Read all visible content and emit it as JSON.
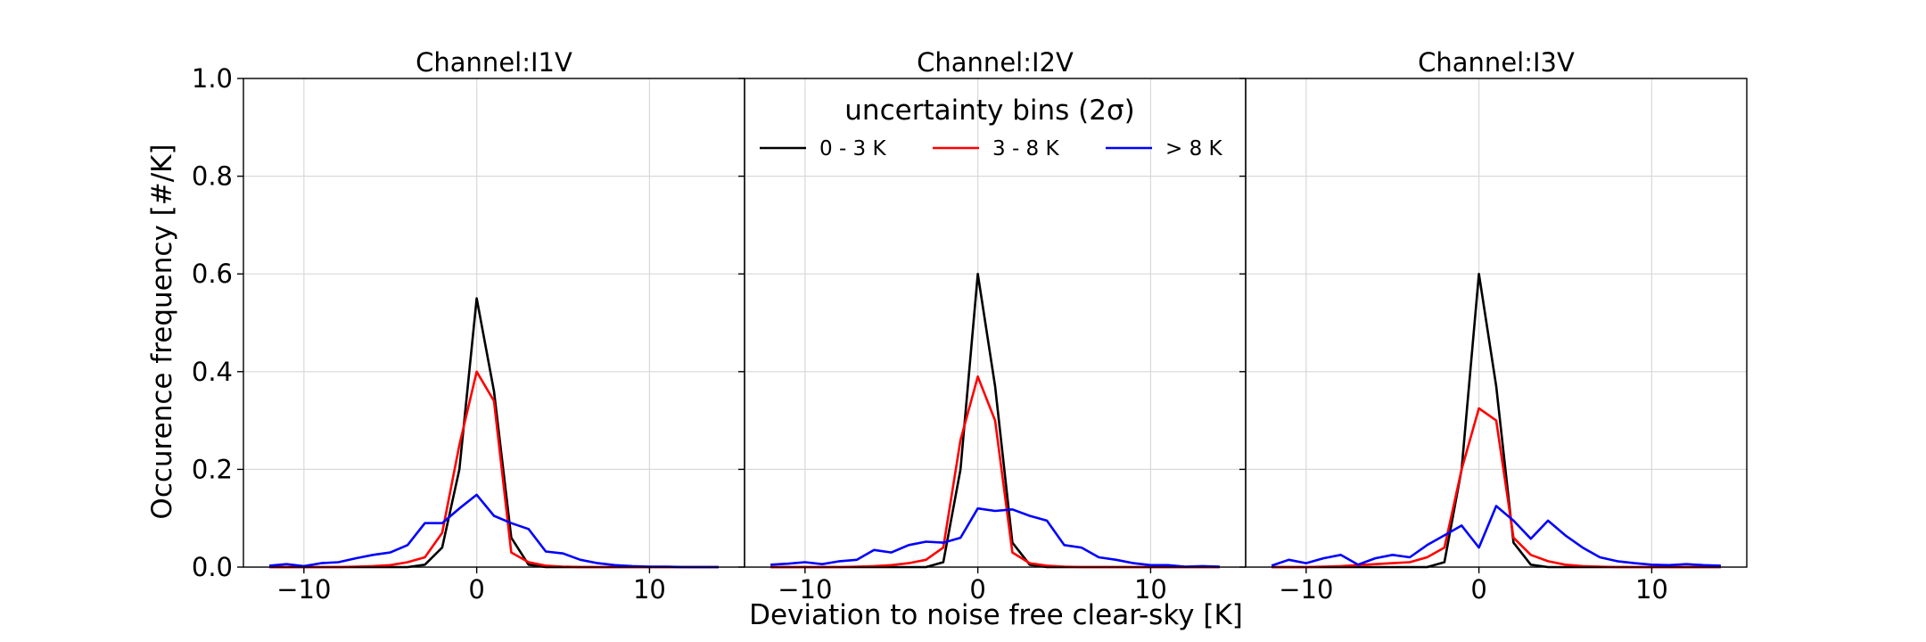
{
  "figure": {
    "ylabel": "Occurence frequency [#/K]",
    "xlabel": "Deviation to noise free clear-sky [K]",
    "legend": {
      "title": "uncertainty bins (2σ)",
      "placement": "upper-center of middle panel",
      "entries": [
        {
          "label": "0 - 3 K",
          "color": "#000000"
        },
        {
          "label": "3 - 8 K",
          "color": "#ff0000"
        },
        {
          "label": "> 8 K",
          "color": "#0000ff"
        }
      ]
    }
  },
  "chart_data": [
    {
      "type": "line",
      "title": "Channel:I1V",
      "xlim": [
        -13.5,
        15.5
      ],
      "ylim": [
        0,
        1.0
      ],
      "xticks": [
        -10,
        0,
        10
      ],
      "xtick_labels": [
        "−10",
        "0",
        "10"
      ],
      "yticks": [
        0.0,
        0.2,
        0.4,
        0.6,
        0.8,
        1.0
      ],
      "ytick_labels": [
        "0.0",
        "0.2",
        "0.4",
        "0.6",
        "0.8",
        "1.0"
      ],
      "grid": true,
      "series": [
        {
          "name": "0 - 3 K",
          "color": "#000000",
          "x": [
            -12,
            -11,
            -10,
            -9,
            -8,
            -7,
            -6,
            -5,
            -4,
            -3,
            -2,
            -1,
            0,
            1,
            2,
            3,
            4,
            5,
            6,
            7,
            8,
            9,
            10,
            11,
            12,
            13,
            14
          ],
          "y": [
            0,
            0,
            0,
            0,
            0,
            0,
            0,
            0,
            0,
            0.005,
            0.04,
            0.2,
            0.55,
            0.36,
            0.06,
            0.005,
            0,
            0,
            0,
            0,
            0,
            0,
            0,
            0,
            0,
            0,
            0
          ]
        },
        {
          "name": "3 - 8 K",
          "color": "#ff0000",
          "x": [
            -12,
            -11,
            -10,
            -9,
            -8,
            -7,
            -6,
            -5,
            -4,
            -3,
            -2,
            -1,
            0,
            1,
            2,
            3,
            4,
            5,
            6,
            7,
            8,
            9,
            10,
            11,
            12,
            13,
            14
          ],
          "y": [
            0,
            0,
            0,
            0,
            0,
            0.001,
            0.002,
            0.004,
            0.01,
            0.02,
            0.07,
            0.25,
            0.4,
            0.34,
            0.03,
            0.01,
            0.003,
            0.001,
            0,
            0,
            0,
            0,
            0,
            0,
            0,
            0,
            0
          ]
        },
        {
          "name": "> 8 K",
          "color": "#0000ff",
          "x": [
            -12,
            -11,
            -10,
            -9,
            -8,
            -7,
            -6,
            -5,
            -4,
            -3,
            -2,
            -1,
            0,
            1,
            2,
            3,
            4,
            5,
            6,
            7,
            8,
            9,
            10,
            11,
            12,
            13,
            14
          ],
          "y": [
            0.003,
            0.006,
            0.002,
            0.008,
            0.01,
            0.018,
            0.025,
            0.03,
            0.045,
            0.09,
            0.09,
            0.12,
            0.148,
            0.105,
            0.09,
            0.078,
            0.032,
            0.028,
            0.015,
            0.008,
            0.004,
            0.002,
            0.001,
            0.001,
            0,
            0,
            0
          ]
        }
      ]
    },
    {
      "type": "line",
      "title": "Channel:I2V",
      "xlim": [
        -13.5,
        15.5
      ],
      "ylim": [
        0,
        1.0
      ],
      "xticks": [
        -10,
        0,
        10
      ],
      "xtick_labels": [
        "−10",
        "0",
        "10"
      ],
      "yticks": [
        0.0,
        0.2,
        0.4,
        0.6,
        0.8,
        1.0
      ],
      "ytick_labels": [],
      "grid": true,
      "series": [
        {
          "name": "0 - 3 K",
          "color": "#000000",
          "x": [
            -12,
            -11,
            -10,
            -9,
            -8,
            -7,
            -6,
            -5,
            -4,
            -3,
            -2,
            -1,
            0,
            1,
            2,
            3,
            4,
            5,
            6,
            7,
            8,
            9,
            10,
            11,
            12,
            13,
            14
          ],
          "y": [
            0,
            0,
            0,
            0,
            0,
            0,
            0,
            0,
            0,
            0,
            0.01,
            0.2,
            0.6,
            0.37,
            0.05,
            0.005,
            0,
            0,
            0,
            0,
            0,
            0,
            0,
            0,
            0,
            0,
            0
          ]
        },
        {
          "name": "3 - 8 K",
          "color": "#ff0000",
          "x": [
            -12,
            -11,
            -10,
            -9,
            -8,
            -7,
            -6,
            -5,
            -4,
            -3,
            -2,
            -1,
            0,
            1,
            2,
            3,
            4,
            5,
            6,
            7,
            8,
            9,
            10,
            11,
            12,
            13,
            14
          ],
          "y": [
            0,
            0,
            0,
            0,
            0,
            0.001,
            0.002,
            0.004,
            0.008,
            0.015,
            0.04,
            0.26,
            0.39,
            0.3,
            0.03,
            0.008,
            0.003,
            0.001,
            0,
            0,
            0,
            0,
            0,
            0,
            0,
            0,
            0
          ]
        },
        {
          "name": "> 8 K",
          "color": "#0000ff",
          "x": [
            -12,
            -11,
            -10,
            -9,
            -8,
            -7,
            -6,
            -5,
            -4,
            -3,
            -2,
            -1,
            0,
            1,
            2,
            3,
            4,
            5,
            6,
            7,
            8,
            9,
            10,
            11,
            12,
            13,
            14
          ],
          "y": [
            0.005,
            0.007,
            0.01,
            0.006,
            0.012,
            0.015,
            0.035,
            0.03,
            0.045,
            0.052,
            0.05,
            0.06,
            0.12,
            0.115,
            0.118,
            0.105,
            0.095,
            0.045,
            0.04,
            0.02,
            0.015,
            0.008,
            0.004,
            0.004,
            0.001,
            0.002,
            0.001
          ]
        }
      ]
    },
    {
      "type": "line",
      "title": "Channel:I3V",
      "xlim": [
        -13.5,
        15.5
      ],
      "ylim": [
        0,
        1.0
      ],
      "xticks": [
        -10,
        0,
        10
      ],
      "xtick_labels": [
        "−10",
        "0",
        "10"
      ],
      "yticks": [
        0.0,
        0.2,
        0.4,
        0.6,
        0.8,
        1.0
      ],
      "ytick_labels": [],
      "grid": true,
      "series": [
        {
          "name": "0 - 3 K",
          "color": "#000000",
          "x": [
            -12,
            -11,
            -10,
            -9,
            -8,
            -7,
            -6,
            -5,
            -4,
            -3,
            -2,
            -1,
            0,
            1,
            2,
            3,
            4,
            5,
            6,
            7,
            8,
            9,
            10,
            11,
            12,
            13,
            14
          ],
          "y": [
            0,
            0,
            0,
            0,
            0,
            0,
            0,
            0,
            0,
            0,
            0.01,
            0.2,
            0.6,
            0.37,
            0.05,
            0.005,
            0,
            0,
            0,
            0,
            0,
            0,
            0,
            0,
            0,
            0,
            0
          ]
        },
        {
          "name": "3 - 8 K",
          "color": "#ff0000",
          "x": [
            -12,
            -11,
            -10,
            -9,
            -8,
            -7,
            -6,
            -5,
            -4,
            -3,
            -2,
            -1,
            0,
            1,
            2,
            3,
            4,
            5,
            6,
            7,
            8,
            9,
            10,
            11,
            12,
            13,
            14
          ],
          "y": [
            0,
            0,
            0,
            0.001,
            0.002,
            0.004,
            0.006,
            0.008,
            0.01,
            0.02,
            0.04,
            0.2,
            0.325,
            0.3,
            0.06,
            0.025,
            0.012,
            0.005,
            0.002,
            0.001,
            0,
            0,
            0,
            0,
            0,
            0,
            0
          ]
        },
        {
          "name": "> 8 K",
          "color": "#0000ff",
          "x": [
            -12,
            -11,
            -10,
            -9,
            -8,
            -7,
            -6,
            -5,
            -4,
            -3,
            -2,
            -1,
            0,
            1,
            2,
            3,
            4,
            5,
            6,
            7,
            8,
            9,
            10,
            11,
            12,
            13,
            14
          ],
          "y": [
            0.003,
            0.015,
            0.008,
            0.018,
            0.025,
            0.005,
            0.018,
            0.025,
            0.02,
            0.045,
            0.065,
            0.085,
            0.04,
            0.125,
            0.095,
            0.058,
            0.095,
            0.065,
            0.04,
            0.02,
            0.012,
            0.008,
            0.005,
            0.004,
            0.006,
            0.004,
            0.003
          ]
        }
      ]
    }
  ]
}
